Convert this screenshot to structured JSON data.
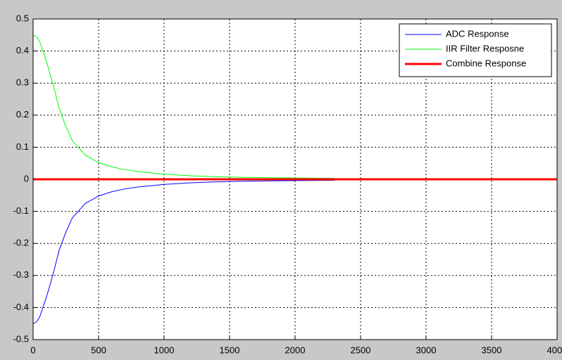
{
  "chart_data": {
    "type": "line",
    "xlim": [
      0,
      4000
    ],
    "ylim": [
      -0.5,
      0.5
    ],
    "xticks": [
      0,
      500,
      1000,
      1500,
      2000,
      2500,
      3000,
      3500,
      4000
    ],
    "yticks": [
      -0.5,
      -0.4,
      -0.3,
      -0.2,
      -0.1,
      0,
      0.1,
      0.2,
      0.3,
      0.4,
      0.5
    ],
    "grid": true,
    "legend": "top-right",
    "series": [
      {
        "name": "ADC Response",
        "color": "#0000ff",
        "x": [
          0,
          25,
          50,
          100,
          150,
          200,
          250,
          300,
          400,
          500,
          600,
          700,
          800,
          1000,
          1200,
          1400,
          1600,
          1800,
          2000,
          2300
        ],
        "values": [
          -0.45,
          -0.445,
          -0.43,
          -0.37,
          -0.3,
          -0.22,
          -0.165,
          -0.12,
          -0.075,
          -0.052,
          -0.039,
          -0.03,
          -0.024,
          -0.016,
          -0.011,
          -0.008,
          -0.006,
          -0.005,
          -0.004,
          -0.003
        ]
      },
      {
        "name": "IIR Filter Resposne",
        "color": "#00ff00",
        "x": [
          0,
          25,
          50,
          100,
          150,
          200,
          250,
          300,
          400,
          500,
          600,
          700,
          800,
          1000,
          1200,
          1400,
          1600,
          1800,
          2000,
          2300
        ],
        "values": [
          0.45,
          0.445,
          0.43,
          0.37,
          0.3,
          0.22,
          0.165,
          0.12,
          0.075,
          0.052,
          0.039,
          0.03,
          0.024,
          0.016,
          0.011,
          0.008,
          0.006,
          0.005,
          0.004,
          0.003
        ]
      },
      {
        "name": "Combine Response",
        "color": "#ff0000",
        "width": 3,
        "x": [
          0,
          4000
        ],
        "values": [
          0,
          0
        ]
      }
    ]
  }
}
